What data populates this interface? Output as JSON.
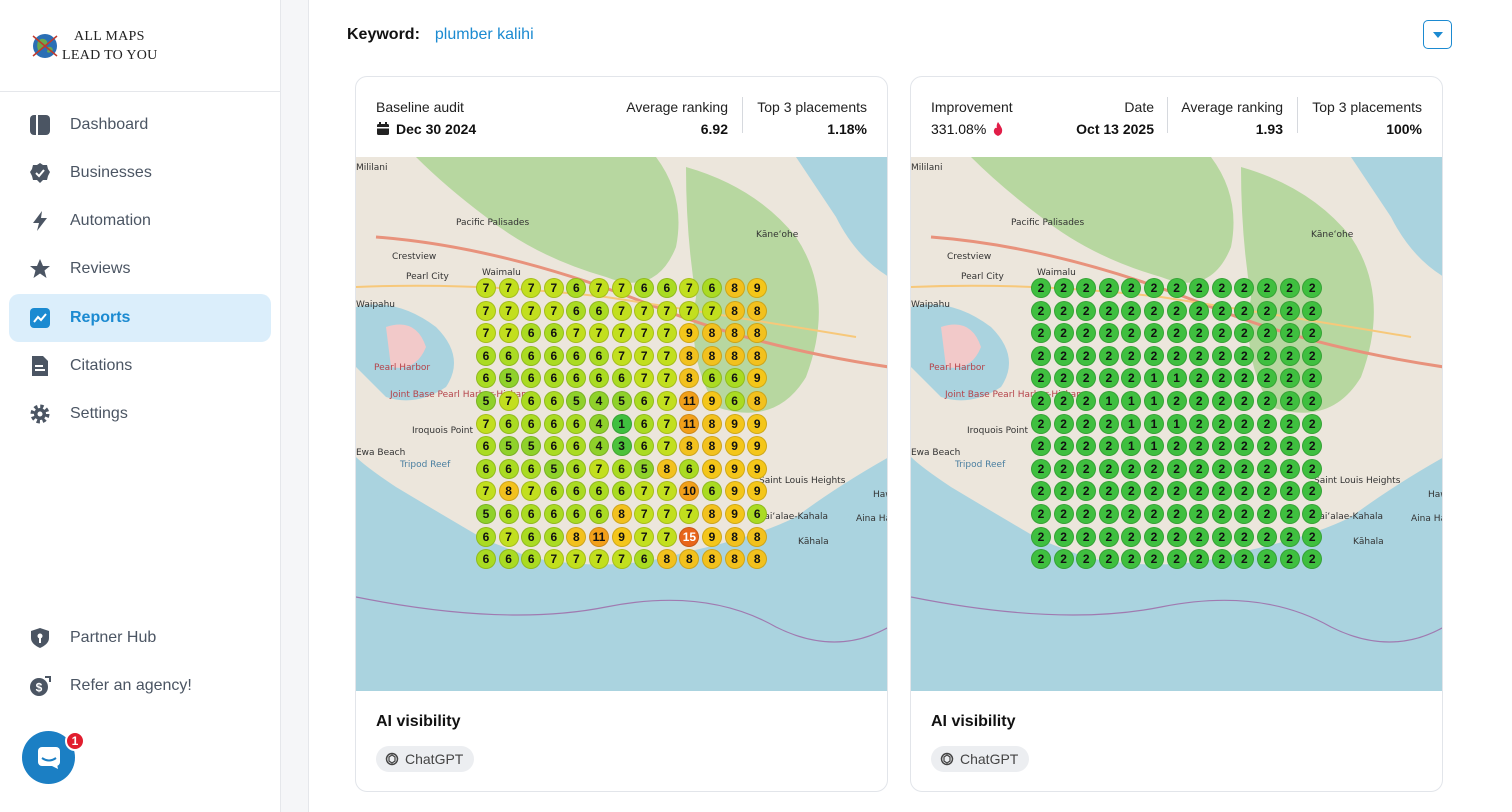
{
  "brand": {
    "line1": "ALL MAPS",
    "line2": "LEAD TO YOU"
  },
  "nav": {
    "items": [
      {
        "label": "Dashboard",
        "icon": "dashboard-icon"
      },
      {
        "label": "Businesses",
        "icon": "badge-check-icon"
      },
      {
        "label": "Automation",
        "icon": "bolt-icon"
      },
      {
        "label": "Reviews",
        "icon": "star-icon"
      },
      {
        "label": "Reports",
        "icon": "chart-line-icon",
        "active": true
      },
      {
        "label": "Citations",
        "icon": "document-icon"
      },
      {
        "label": "Settings",
        "icon": "gear-icon"
      }
    ],
    "bottom": [
      {
        "label": "Partner Hub",
        "icon": "shield-icon"
      },
      {
        "label": "Refer an agency!",
        "icon": "dollar-icon"
      }
    ]
  },
  "chat": {
    "badge": "1"
  },
  "keyword": {
    "label": "Keyword:",
    "value": "plumber kalihi"
  },
  "baseline": {
    "title": "Baseline audit",
    "date": "Dec 30 2024",
    "avg_label": "Average ranking",
    "avg_value": "6.92",
    "top3_label": "Top 3 placements",
    "top3_value": "1.18%",
    "ai_title": "AI visibility",
    "ai_chip": "ChatGPT",
    "grid": [
      [
        7,
        7,
        7,
        7,
        6,
        7,
        7,
        6,
        6,
        7,
        6,
        8,
        9
      ],
      [
        7,
        7,
        7,
        7,
        6,
        6,
        7,
        7,
        7,
        7,
        7,
        8,
        8
      ],
      [
        7,
        7,
        6,
        6,
        7,
        7,
        7,
        7,
        7,
        9,
        8,
        8,
        8
      ],
      [
        6,
        6,
        6,
        6,
        6,
        6,
        7,
        7,
        7,
        8,
        8,
        8,
        8
      ],
      [
        6,
        5,
        6,
        6,
        6,
        6,
        6,
        7,
        7,
        8,
        6,
        6,
        9
      ],
      [
        5,
        7,
        6,
        6,
        5,
        4,
        5,
        6,
        7,
        11,
        9,
        6,
        8
      ],
      [
        7,
        6,
        6,
        6,
        6,
        4,
        1,
        6,
        7,
        11,
        8,
        9,
        9
      ],
      [
        6,
        5,
        5,
        6,
        6,
        4,
        3,
        6,
        7,
        8,
        8,
        9,
        9
      ],
      [
        6,
        6,
        6,
        5,
        6,
        7,
        6,
        5,
        8,
        6,
        9,
        9,
        9
      ],
      [
        7,
        8,
        7,
        6,
        6,
        6,
        6,
        7,
        7,
        10,
        6,
        9,
        9
      ],
      [
        5,
        6,
        6,
        6,
        6,
        6,
        8,
        7,
        7,
        7,
        8,
        9,
        6
      ],
      [
        6,
        7,
        6,
        6,
        8,
        11,
        9,
        7,
        7,
        15,
        9,
        8,
        8
      ],
      [
        6,
        6,
        6,
        7,
        7,
        7,
        7,
        6,
        8,
        8,
        8,
        8,
        8
      ]
    ]
  },
  "current": {
    "improvement_label": "Improvement",
    "improvement_value": "331.08%",
    "date_label": "Date",
    "date_value": "Oct 13 2025",
    "avg_label": "Average ranking",
    "avg_value": "1.93",
    "top3_label": "Top 3 placements",
    "top3_value": "100%",
    "ai_title": "AI visibility",
    "ai_chip": "ChatGPT",
    "grid": [
      [
        2,
        2,
        2,
        2,
        2,
        2,
        2,
        2,
        2,
        2,
        2,
        2,
        2
      ],
      [
        2,
        2,
        2,
        2,
        2,
        2,
        2,
        2,
        2,
        2,
        2,
        2,
        2
      ],
      [
        2,
        2,
        2,
        2,
        2,
        2,
        2,
        2,
        2,
        2,
        2,
        2,
        2
      ],
      [
        2,
        2,
        2,
        2,
        2,
        2,
        2,
        2,
        2,
        2,
        2,
        2,
        2
      ],
      [
        2,
        2,
        2,
        2,
        2,
        1,
        1,
        2,
        2,
        2,
        2,
        2,
        2
      ],
      [
        2,
        2,
        2,
        1,
        1,
        1,
        2,
        2,
        2,
        2,
        2,
        2,
        2
      ],
      [
        2,
        2,
        2,
        2,
        1,
        1,
        1,
        2,
        2,
        2,
        2,
        2,
        2
      ],
      [
        2,
        2,
        2,
        2,
        1,
        1,
        2,
        2,
        2,
        2,
        2,
        2,
        2
      ],
      [
        2,
        2,
        2,
        2,
        2,
        2,
        2,
        2,
        2,
        2,
        2,
        2,
        2
      ],
      [
        2,
        2,
        2,
        2,
        2,
        2,
        2,
        2,
        2,
        2,
        2,
        2,
        2
      ],
      [
        2,
        2,
        2,
        2,
        2,
        2,
        2,
        2,
        2,
        2,
        2,
        2,
        2
      ],
      [
        2,
        2,
        2,
        2,
        2,
        2,
        2,
        2,
        2,
        2,
        2,
        2,
        2
      ],
      [
        2,
        2,
        2,
        2,
        2,
        2,
        2,
        2,
        2,
        2,
        2,
        2,
        2
      ]
    ]
  },
  "map_labels": [
    "Mililani",
    "Pacific Palisades",
    "Crestview",
    "Pearl City",
    "Waimalu",
    "Waipahu",
    "Pearl Harbor",
    "Joint Base Pearl Harbor-Hickam",
    "Iroquois Point",
    "Ewa Beach",
    "Tripod Reef",
    "Kāneʻohe",
    "Saint Louis Heights",
    "Waiʻalae-Kahala",
    "Kāhala",
    "Hawaiʻi Kai",
    "Aina Haina"
  ]
}
